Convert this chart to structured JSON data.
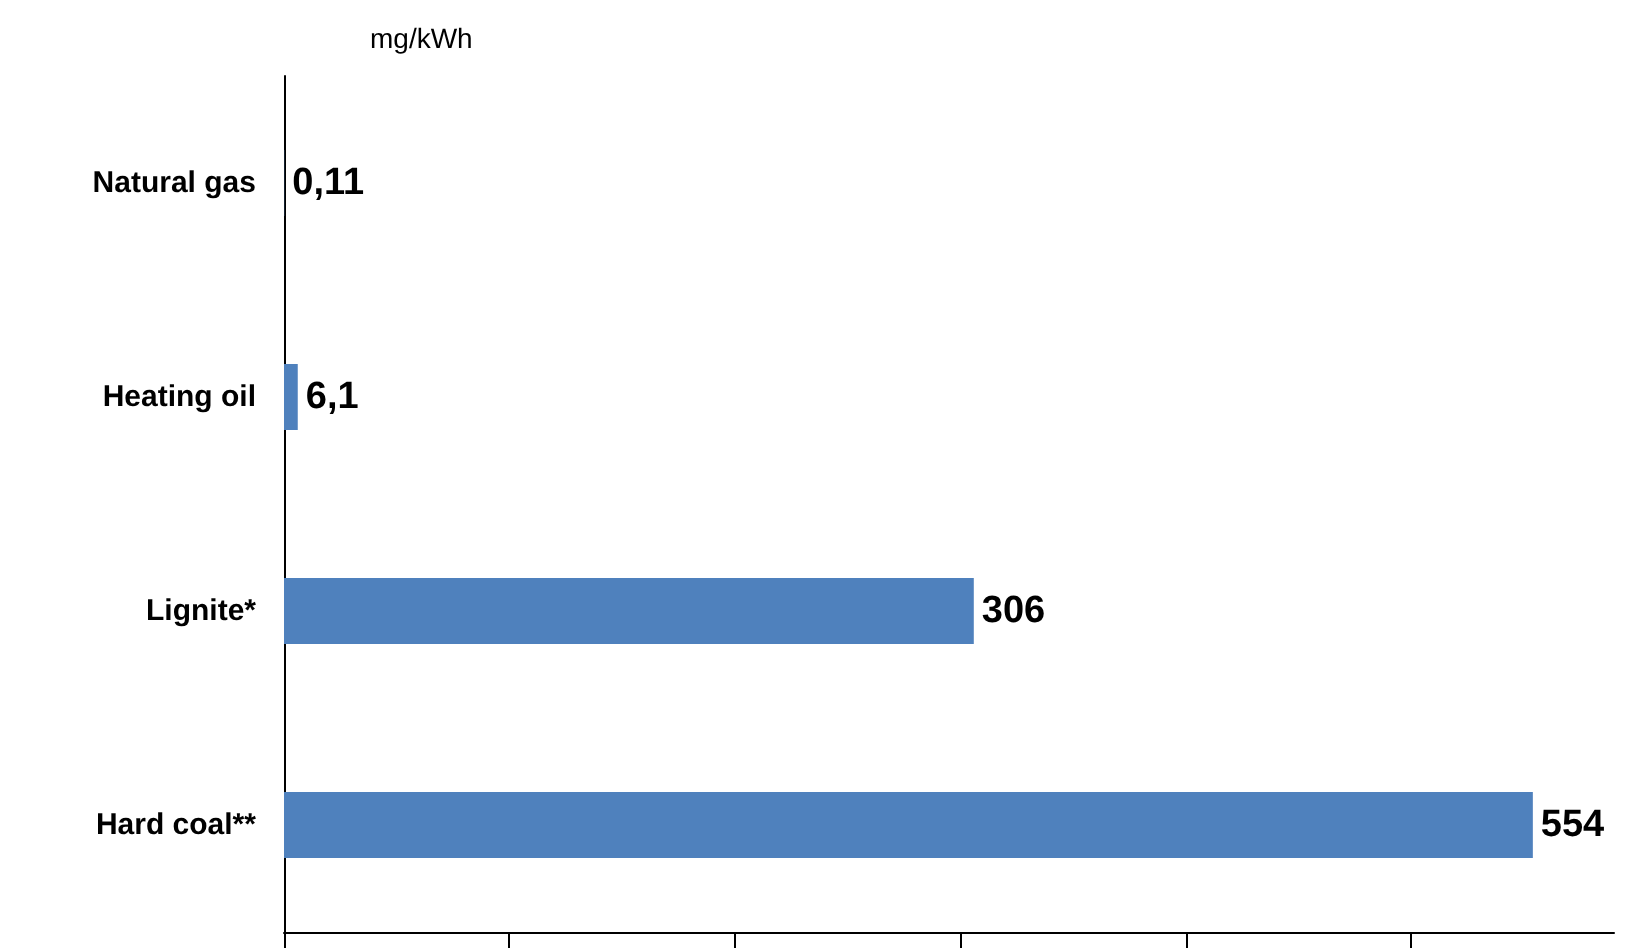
{
  "chart_data": {
    "type": "bar",
    "orientation": "horizontal",
    "xlabel": "mg/kWh",
    "categories": [
      "Natural gas",
      "Heating oil",
      "Lignite*",
      "Hard coal**"
    ],
    "values": [
      0.11,
      6.1,
      306,
      554
    ],
    "value_labels": [
      "0,11",
      "6,1",
      "306",
      "554"
    ],
    "color": "#4f81bd",
    "xlim": [
      0,
      590
    ],
    "xticks": [
      {
        "value": 0,
        "label": null
      },
      {
        "value": 100,
        "label": null
      },
      {
        "value": 200,
        "label": null
      },
      {
        "value": 300,
        "label": null
      },
      {
        "value": 400,
        "label": null
      },
      {
        "value": 500,
        "label": null
      }
    ],
    "tick_labels": "y",
    "grid": false
  }
}
